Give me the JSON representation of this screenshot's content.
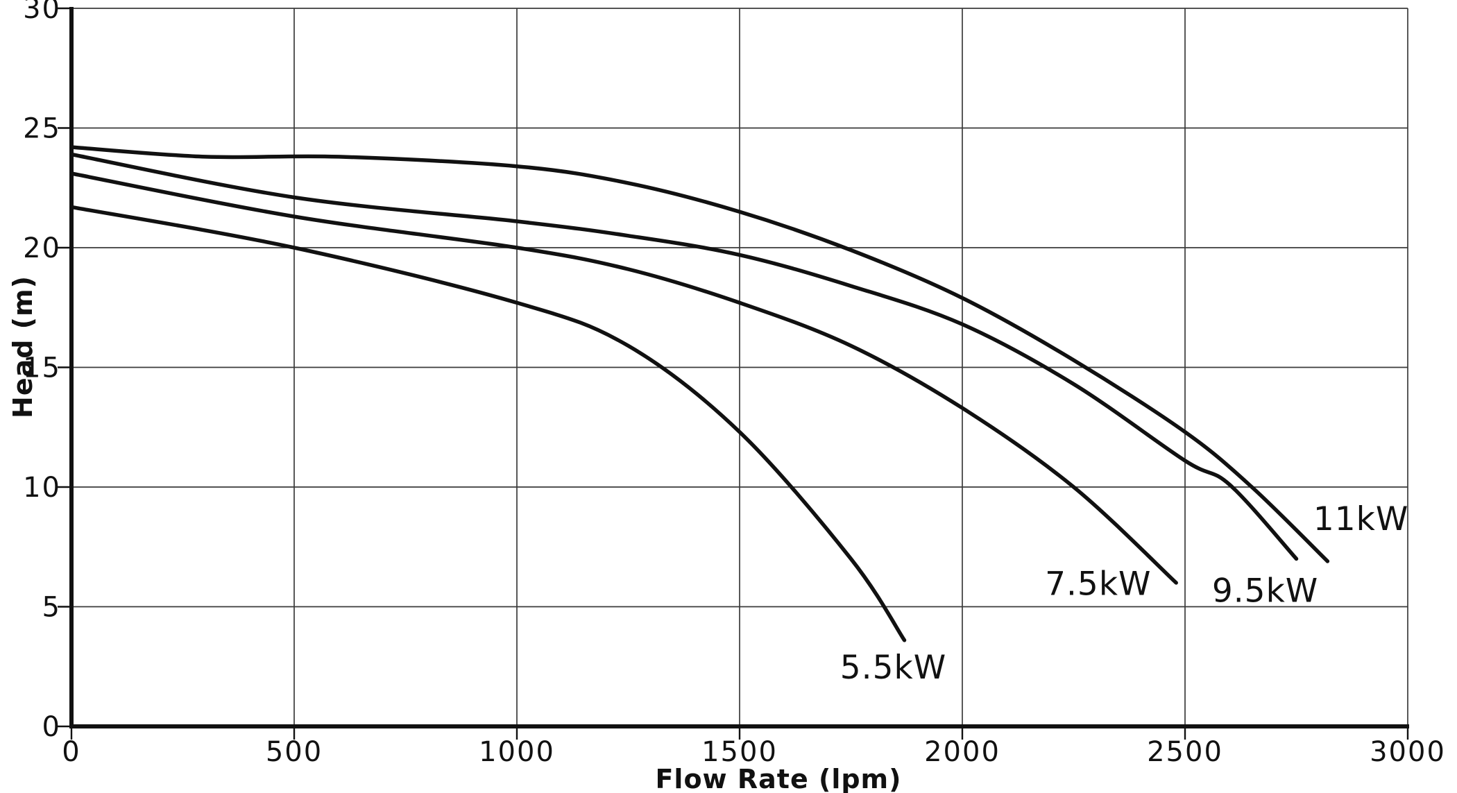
{
  "chart_data": {
    "type": "line",
    "title": "",
    "xlabel": "Flow Rate (lpm)",
    "ylabel": "Head (m)",
    "xlim": [
      0,
      3000
    ],
    "ylim": [
      0,
      30
    ],
    "x_ticks": [
      0,
      500,
      1000,
      1500,
      2000,
      2500,
      3000
    ],
    "y_ticks": [
      0,
      5,
      10,
      15,
      20,
      25,
      30
    ],
    "grid": true,
    "legend_position": "inline-labels",
    "colors": {
      "line": "#111111",
      "grid": "#3a3a3a",
      "axis": "#111111",
      "background": "#ffffff"
    },
    "series": [
      {
        "name": "5.5kW",
        "label_at": [
          1845,
          2.0
        ],
        "points": [
          [
            0,
            21.7
          ],
          [
            500,
            20.0
          ],
          [
            1000,
            17.7
          ],
          [
            1250,
            15.9
          ],
          [
            1500,
            12.3
          ],
          [
            1750,
            7.0
          ],
          [
            1870,
            3.6
          ]
        ]
      },
      {
        "name": "7.5kW",
        "label_at": [
          2305,
          5.5
        ],
        "points": [
          [
            0,
            23.1
          ],
          [
            500,
            21.3
          ],
          [
            1000,
            20.0
          ],
          [
            1250,
            19.1
          ],
          [
            1500,
            17.7
          ],
          [
            1750,
            15.9
          ],
          [
            2000,
            13.3
          ],
          [
            2250,
            10.0
          ],
          [
            2480,
            6.0
          ]
        ]
      },
      {
        "name": "9.5kW",
        "label_at": [
          2680,
          5.2
        ],
        "points": [
          [
            0,
            23.9
          ],
          [
            500,
            22.1
          ],
          [
            1000,
            21.1
          ],
          [
            1250,
            20.5
          ],
          [
            1500,
            19.7
          ],
          [
            1750,
            18.4
          ],
          [
            2000,
            16.8
          ],
          [
            2250,
            14.3
          ],
          [
            2500,
            11.1
          ],
          [
            2600,
            10.1
          ],
          [
            2750,
            7.0
          ]
        ]
      },
      {
        "name": "11kW",
        "label_at": [
          2895,
          8.2
        ],
        "points": [
          [
            0,
            24.2
          ],
          [
            300,
            23.8
          ],
          [
            600,
            23.8
          ],
          [
            1000,
            23.4
          ],
          [
            1250,
            22.7
          ],
          [
            1500,
            21.5
          ],
          [
            1750,
            19.9
          ],
          [
            2000,
            17.9
          ],
          [
            2250,
            15.3
          ],
          [
            2500,
            12.3
          ],
          [
            2650,
            10.0
          ],
          [
            2820,
            6.9
          ]
        ]
      }
    ]
  }
}
